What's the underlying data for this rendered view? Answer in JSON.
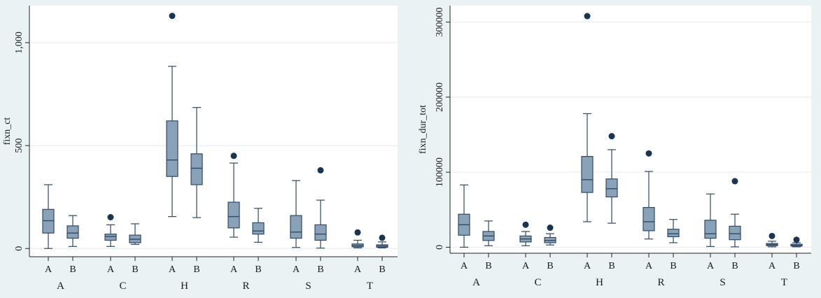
{
  "colors": {
    "outer_bg": "#eaf2f3",
    "plot_bg": "#ffffff",
    "box_fill": "#8aa2b8",
    "box_stroke": "#2f4a66",
    "outlier": "#1a3550",
    "grid": "#e3ebee",
    "axis": "#222222"
  },
  "chart_data": [
    {
      "type": "box",
      "title": "",
      "ylabel": "fixn_ct",
      "ylim": [
        -40,
        1180
      ],
      "yticks": [
        0,
        500,
        1000
      ],
      "yticklabels": [
        "0",
        "500",
        "1,000"
      ],
      "ytick_rotation": "vertical",
      "groups": [
        "A",
        "C",
        "H",
        "R",
        "S",
        "T"
      ],
      "categories": [
        "A",
        "B"
      ],
      "boxes": [
        {
          "group": "A",
          "category": "A",
          "min": 0,
          "q1": 75,
          "median": 135,
          "q3": 190,
          "max": 310,
          "outliers": []
        },
        {
          "group": "A",
          "category": "B",
          "min": 10,
          "q1": 50,
          "median": 75,
          "q3": 110,
          "max": 160,
          "outliers": []
        },
        {
          "group": "C",
          "category": "A",
          "min": 10,
          "q1": 40,
          "median": 58,
          "q3": 70,
          "max": 115,
          "outliers": [
            152
          ]
        },
        {
          "group": "C",
          "category": "B",
          "min": 20,
          "q1": 28,
          "median": 45,
          "q3": 65,
          "max": 120,
          "outliers": []
        },
        {
          "group": "H",
          "category": "A",
          "min": 155,
          "q1": 350,
          "median": 430,
          "q3": 620,
          "max": 885,
          "outliers": [
            1130
          ]
        },
        {
          "group": "H",
          "category": "B",
          "min": 150,
          "q1": 310,
          "median": 390,
          "q3": 460,
          "max": 685,
          "outliers": []
        },
        {
          "group": "R",
          "category": "A",
          "min": 55,
          "q1": 100,
          "median": 155,
          "q3": 225,
          "max": 415,
          "outliers": [
            450
          ]
        },
        {
          "group": "R",
          "category": "B",
          "min": 30,
          "q1": 70,
          "median": 85,
          "q3": 125,
          "max": 195,
          "outliers": []
        },
        {
          "group": "S",
          "category": "A",
          "min": 5,
          "q1": 50,
          "median": 80,
          "q3": 160,
          "max": 330,
          "outliers": []
        },
        {
          "group": "S",
          "category": "B",
          "min": 2,
          "q1": 40,
          "median": 70,
          "q3": 115,
          "max": 235,
          "outliers": [
            380
          ]
        },
        {
          "group": "T",
          "category": "A",
          "min": 3,
          "q1": 8,
          "median": 14,
          "q3": 22,
          "max": 40,
          "outliers": [
            78
          ]
        },
        {
          "group": "T",
          "category": "B",
          "min": 3,
          "q1": 6,
          "median": 12,
          "q3": 18,
          "max": 32,
          "outliers": [
            52
          ]
        }
      ]
    },
    {
      "type": "box",
      "title": "",
      "ylabel": "fixn_dur_tot",
      "ylim": [
        -8000,
        322000
      ],
      "yticks": [
        0,
        100000,
        200000,
        300000
      ],
      "yticklabels": [
        "0",
        "100000",
        "200000",
        "300000"
      ],
      "ytick_rotation": "vertical",
      "groups": [
        "A",
        "C",
        "H",
        "R",
        "S",
        "T"
      ],
      "categories": [
        "A",
        "B"
      ],
      "boxes": [
        {
          "group": "A",
          "category": "A",
          "min": 0,
          "q1": 16000,
          "median": 30000,
          "q3": 44000,
          "max": 83000,
          "outliers": []
        },
        {
          "group": "A",
          "category": "B",
          "min": 2000,
          "q1": 9000,
          "median": 15000,
          "q3": 21000,
          "max": 35000,
          "outliers": []
        },
        {
          "group": "C",
          "category": "A",
          "min": 2000,
          "q1": 7000,
          "median": 11000,
          "q3": 15000,
          "max": 21000,
          "outliers": [
            30000
          ]
        },
        {
          "group": "C",
          "category": "B",
          "min": 3000,
          "q1": 6000,
          "median": 9000,
          "q3": 13000,
          "max": 18000,
          "outliers": [
            26000
          ]
        },
        {
          "group": "H",
          "category": "A",
          "min": 34000,
          "q1": 73000,
          "median": 90000,
          "q3": 121000,
          "max": 178000,
          "outliers": [
            308000
          ]
        },
        {
          "group": "H",
          "category": "B",
          "min": 32000,
          "q1": 67000,
          "median": 78000,
          "q3": 91000,
          "max": 130000,
          "outliers": [
            148000
          ]
        },
        {
          "group": "R",
          "category": "A",
          "min": 11000,
          "q1": 22000,
          "median": 34000,
          "q3": 53000,
          "max": 101000,
          "outliers": [
            125000
          ]
        },
        {
          "group": "R",
          "category": "B",
          "min": 6000,
          "q1": 14000,
          "median": 18000,
          "q3": 24000,
          "max": 37000,
          "outliers": []
        },
        {
          "group": "S",
          "category": "A",
          "min": 1000,
          "q1": 12000,
          "median": 18000,
          "q3": 36000,
          "max": 71000,
          "outliers": []
        },
        {
          "group": "S",
          "category": "B",
          "min": 500,
          "q1": 10000,
          "median": 18000,
          "q3": 28000,
          "max": 44000,
          "outliers": [
            88000
          ]
        },
        {
          "group": "T",
          "category": "A",
          "min": 500,
          "q1": 2000,
          "median": 3500,
          "q3": 5000,
          "max": 8000,
          "outliers": [
            15000
          ]
        },
        {
          "group": "T",
          "category": "B",
          "min": 500,
          "q1": 1500,
          "median": 2500,
          "q3": 4000,
          "max": 6000,
          "outliers": [
            10000
          ]
        }
      ]
    }
  ]
}
